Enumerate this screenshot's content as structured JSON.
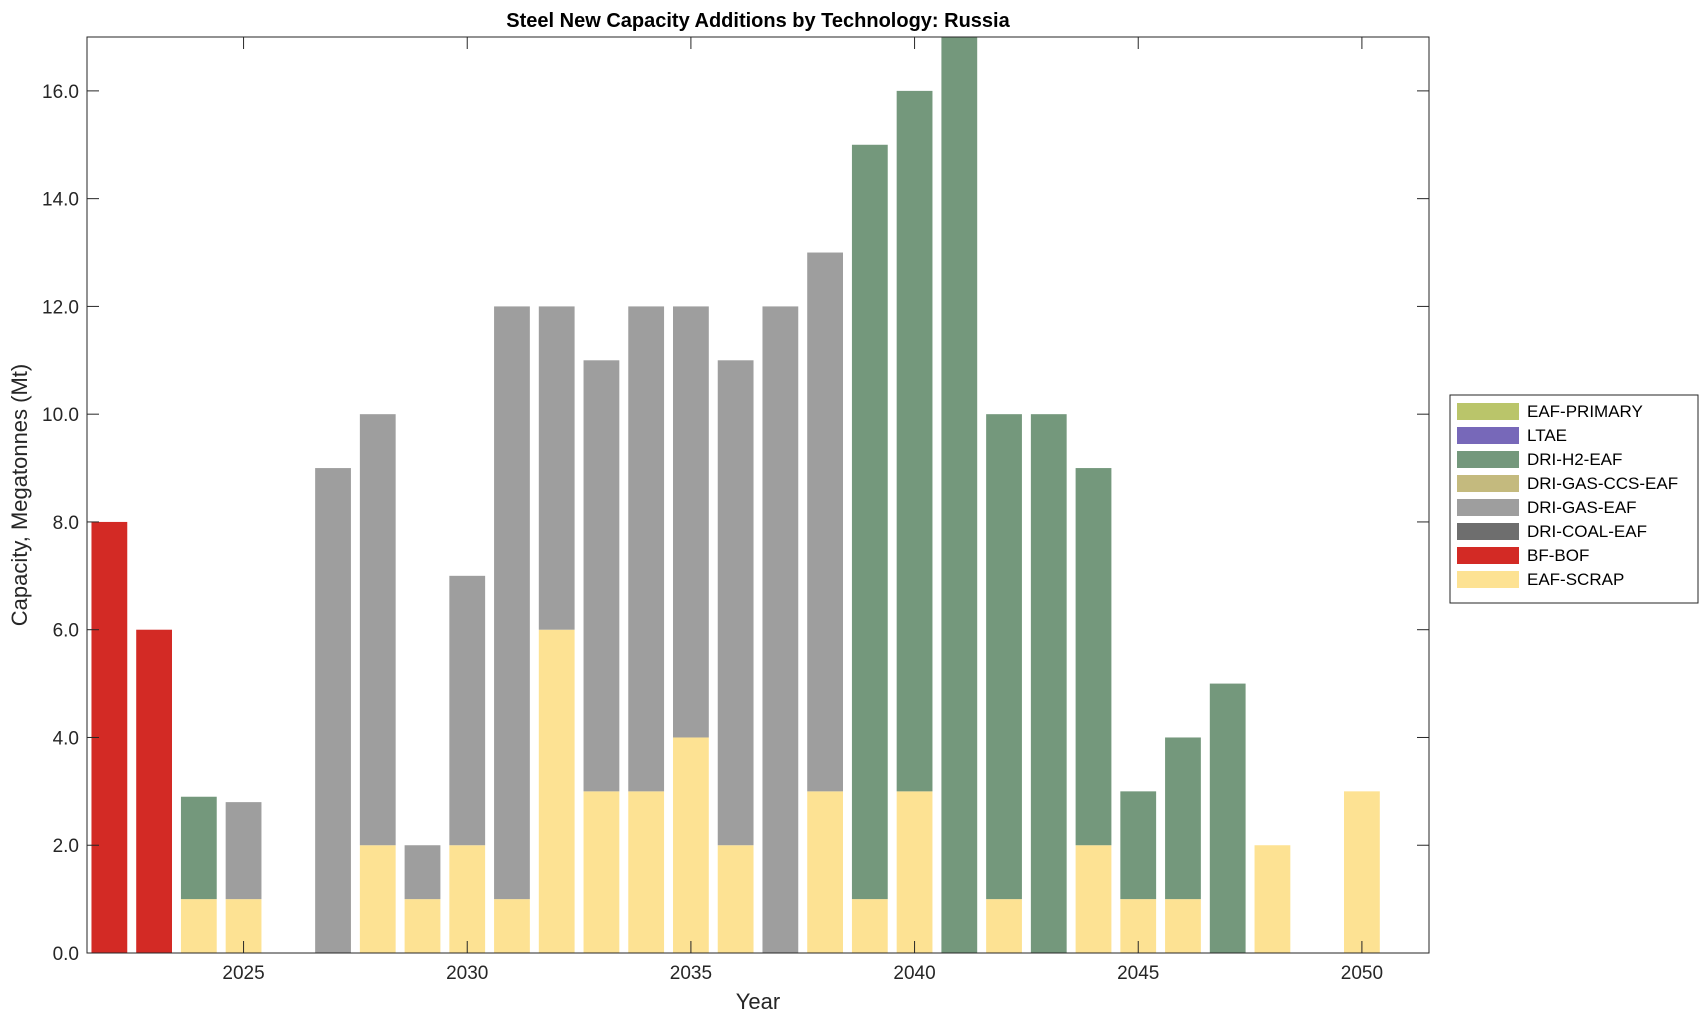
{
  "chart_data": {
    "type": "bar",
    "stacked": true,
    "title": "Steel New Capacity Additions by Technology: Russia",
    "xlabel": "Year",
    "ylabel": "Capacity, Megatonnes (Mt)",
    "x_ticks": [
      2025,
      2030,
      2035,
      2040,
      2045,
      2050
    ],
    "y_ticks": [
      "0.0",
      "2.0",
      "4.0",
      "6.0",
      "8.0",
      "10.0",
      "12.0",
      "14.0",
      "16.0"
    ],
    "xlim": [
      2021.5,
      2051.5
    ],
    "ylim": [
      0,
      17
    ],
    "grid": false,
    "legend_position": "right",
    "categories": [
      2022,
      2023,
      2024,
      2025,
      2026,
      2027,
      2028,
      2029,
      2030,
      2031,
      2032,
      2033,
      2034,
      2035,
      2036,
      2037,
      2038,
      2039,
      2040,
      2041,
      2042,
      2043,
      2044,
      2045,
      2046,
      2047,
      2048,
      2049,
      2050
    ],
    "series": [
      {
        "name": "EAF-SCRAP",
        "color": "#FDE293",
        "values": [
          0,
          0,
          1,
          1,
          0,
          0,
          2,
          1,
          2,
          1,
          6,
          3,
          3,
          4,
          2,
          0,
          3,
          1,
          3,
          0,
          1,
          0,
          2,
          1,
          1,
          0,
          2,
          0,
          3
        ]
      },
      {
        "name": "BF-BOF",
        "color": "#D32A25",
        "values": [
          8,
          6,
          0,
          0,
          0,
          0,
          0,
          0,
          0,
          0,
          0,
          0,
          0,
          0,
          0,
          0,
          0,
          0,
          0,
          0,
          0,
          0,
          0,
          0,
          0,
          0,
          0,
          0,
          0
        ]
      },
      {
        "name": "DRI-COAL-EAF",
        "color": "#6E6E6E",
        "values": [
          0,
          0,
          0,
          0,
          0,
          0,
          0,
          0,
          0,
          0,
          0,
          0,
          0,
          0,
          0,
          0,
          0,
          0,
          0,
          0,
          0,
          0,
          0,
          0,
          0,
          0,
          0,
          0,
          0
        ]
      },
      {
        "name": "DRI-GAS-EAF",
        "color": "#9E9E9E",
        "values": [
          0,
          0,
          0,
          1.8,
          0,
          9,
          8,
          1,
          5,
          11,
          6,
          8,
          9,
          8,
          9,
          12,
          10,
          0,
          0,
          0,
          0,
          0,
          0,
          0,
          0,
          0,
          0,
          0,
          0
        ]
      },
      {
        "name": "DRI-GAS-CCS-EAF",
        "color": "#C4BA7E",
        "values": [
          0,
          0,
          0,
          0,
          0,
          0,
          0,
          0,
          0,
          0,
          0,
          0,
          0,
          0,
          0,
          0,
          0,
          0,
          0,
          0,
          0,
          0,
          0,
          0,
          0,
          0,
          0,
          0,
          0
        ]
      },
      {
        "name": "DRI-H2-EAF",
        "color": "#74987C",
        "values": [
          0,
          0,
          1.9,
          0,
          0,
          0,
          0,
          0,
          0,
          0,
          0,
          0,
          0,
          0,
          0,
          0,
          0,
          14,
          13,
          17,
          9,
          10,
          7,
          2,
          3,
          5,
          0,
          0,
          0
        ]
      },
      {
        "name": "LTAE",
        "color": "#7768B9",
        "values": [
          0,
          0,
          0,
          0,
          0,
          0,
          0,
          0,
          0,
          0,
          0,
          0,
          0,
          0,
          0,
          0,
          0,
          0,
          0,
          0,
          0,
          0,
          0,
          0,
          0,
          0,
          0,
          0,
          0
        ]
      },
      {
        "name": "EAF-PRIMARY",
        "color": "#BAC56A",
        "values": [
          0,
          0,
          0,
          0,
          0,
          0,
          0,
          0,
          0,
          0,
          0,
          0,
          0,
          0,
          0,
          0,
          0,
          0,
          0,
          0,
          0,
          0,
          0,
          0,
          0,
          0,
          0,
          0,
          0
        ]
      }
    ],
    "legend_order": [
      "EAF-PRIMARY",
      "LTAE",
      "DRI-H2-EAF",
      "DRI-GAS-CCS-EAF",
      "DRI-GAS-EAF",
      "DRI-COAL-EAF",
      "BF-BOF",
      "EAF-SCRAP"
    ]
  }
}
